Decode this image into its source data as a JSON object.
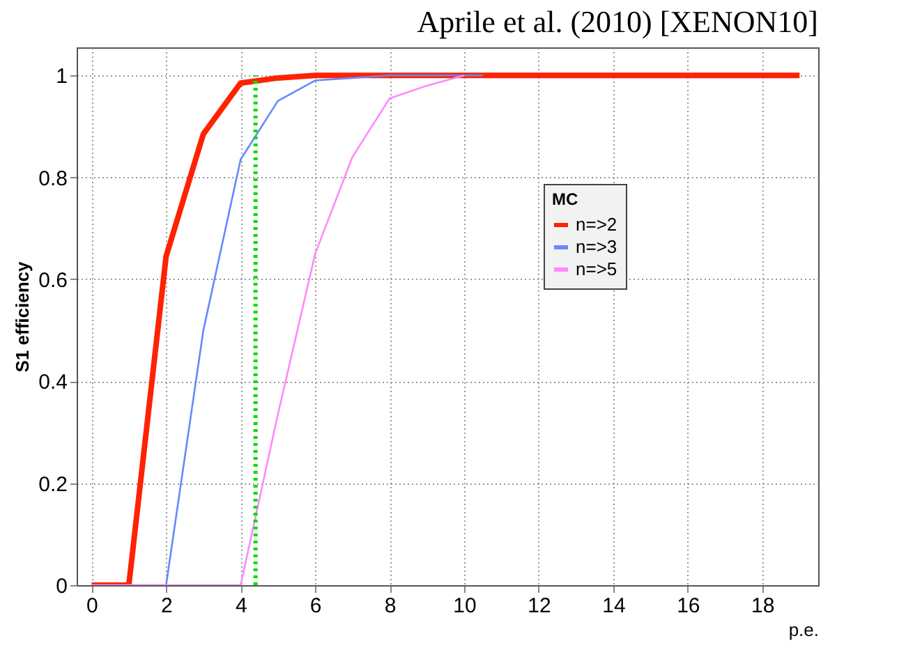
{
  "chart_data": {
    "type": "line",
    "title": "Aprile et al. (2010) [XENON10]",
    "xlabel": "p.e.",
    "ylabel": "S1 efficiency",
    "legend_title": "MC",
    "x": [
      0,
      1,
      2,
      3,
      4,
      5,
      6,
      7,
      8,
      9,
      10,
      11,
      12,
      13,
      14,
      15,
      16,
      17,
      18,
      19
    ],
    "series": [
      {
        "name": "n=>2",
        "color": "#ff2200",
        "values": [
          0,
          0,
          0.645,
          0.885,
          0.985,
          0.995,
          1,
          1,
          1,
          1,
          1,
          1,
          1,
          1,
          1,
          1,
          1,
          1,
          1,
          1
        ]
      },
      {
        "name": "n=>3",
        "color": "#6688ff",
        "x": [
          0,
          1,
          2,
          3,
          4,
          5,
          6,
          7,
          8,
          9,
          10,
          10.5
        ],
        "values": [
          0,
          0,
          0,
          0.5,
          0.835,
          0.95,
          0.99,
          0.995,
          1,
          1,
          1,
          1
        ]
      },
      {
        "name": "n=>5",
        "color": "#ff88ff",
        "x": [
          0,
          1,
          2,
          3,
          4,
          5,
          6,
          7,
          8,
          9,
          10
        ],
        "values": [
          0,
          0,
          0,
          0,
          0,
          0.335,
          0.65,
          0.84,
          0.955,
          0.98,
          1
        ]
      }
    ],
    "ref_lines": [
      {
        "axis": "x",
        "value": 4.4,
        "label": null,
        "color": "#00dd00",
        "line_style": "dotted"
      }
    ],
    "xlim": [
      -0.4,
      19.5
    ],
    "ylim": [
      0,
      1.055
    ],
    "xticks": [
      0,
      2,
      4,
      6,
      8,
      10,
      12,
      14,
      16,
      18
    ],
    "yticks": [
      0,
      0.2,
      0.4,
      0.6,
      0.8,
      1
    ],
    "grid": true,
    "legend": "right",
    "marker": "none",
    "line_style": "solid"
  }
}
